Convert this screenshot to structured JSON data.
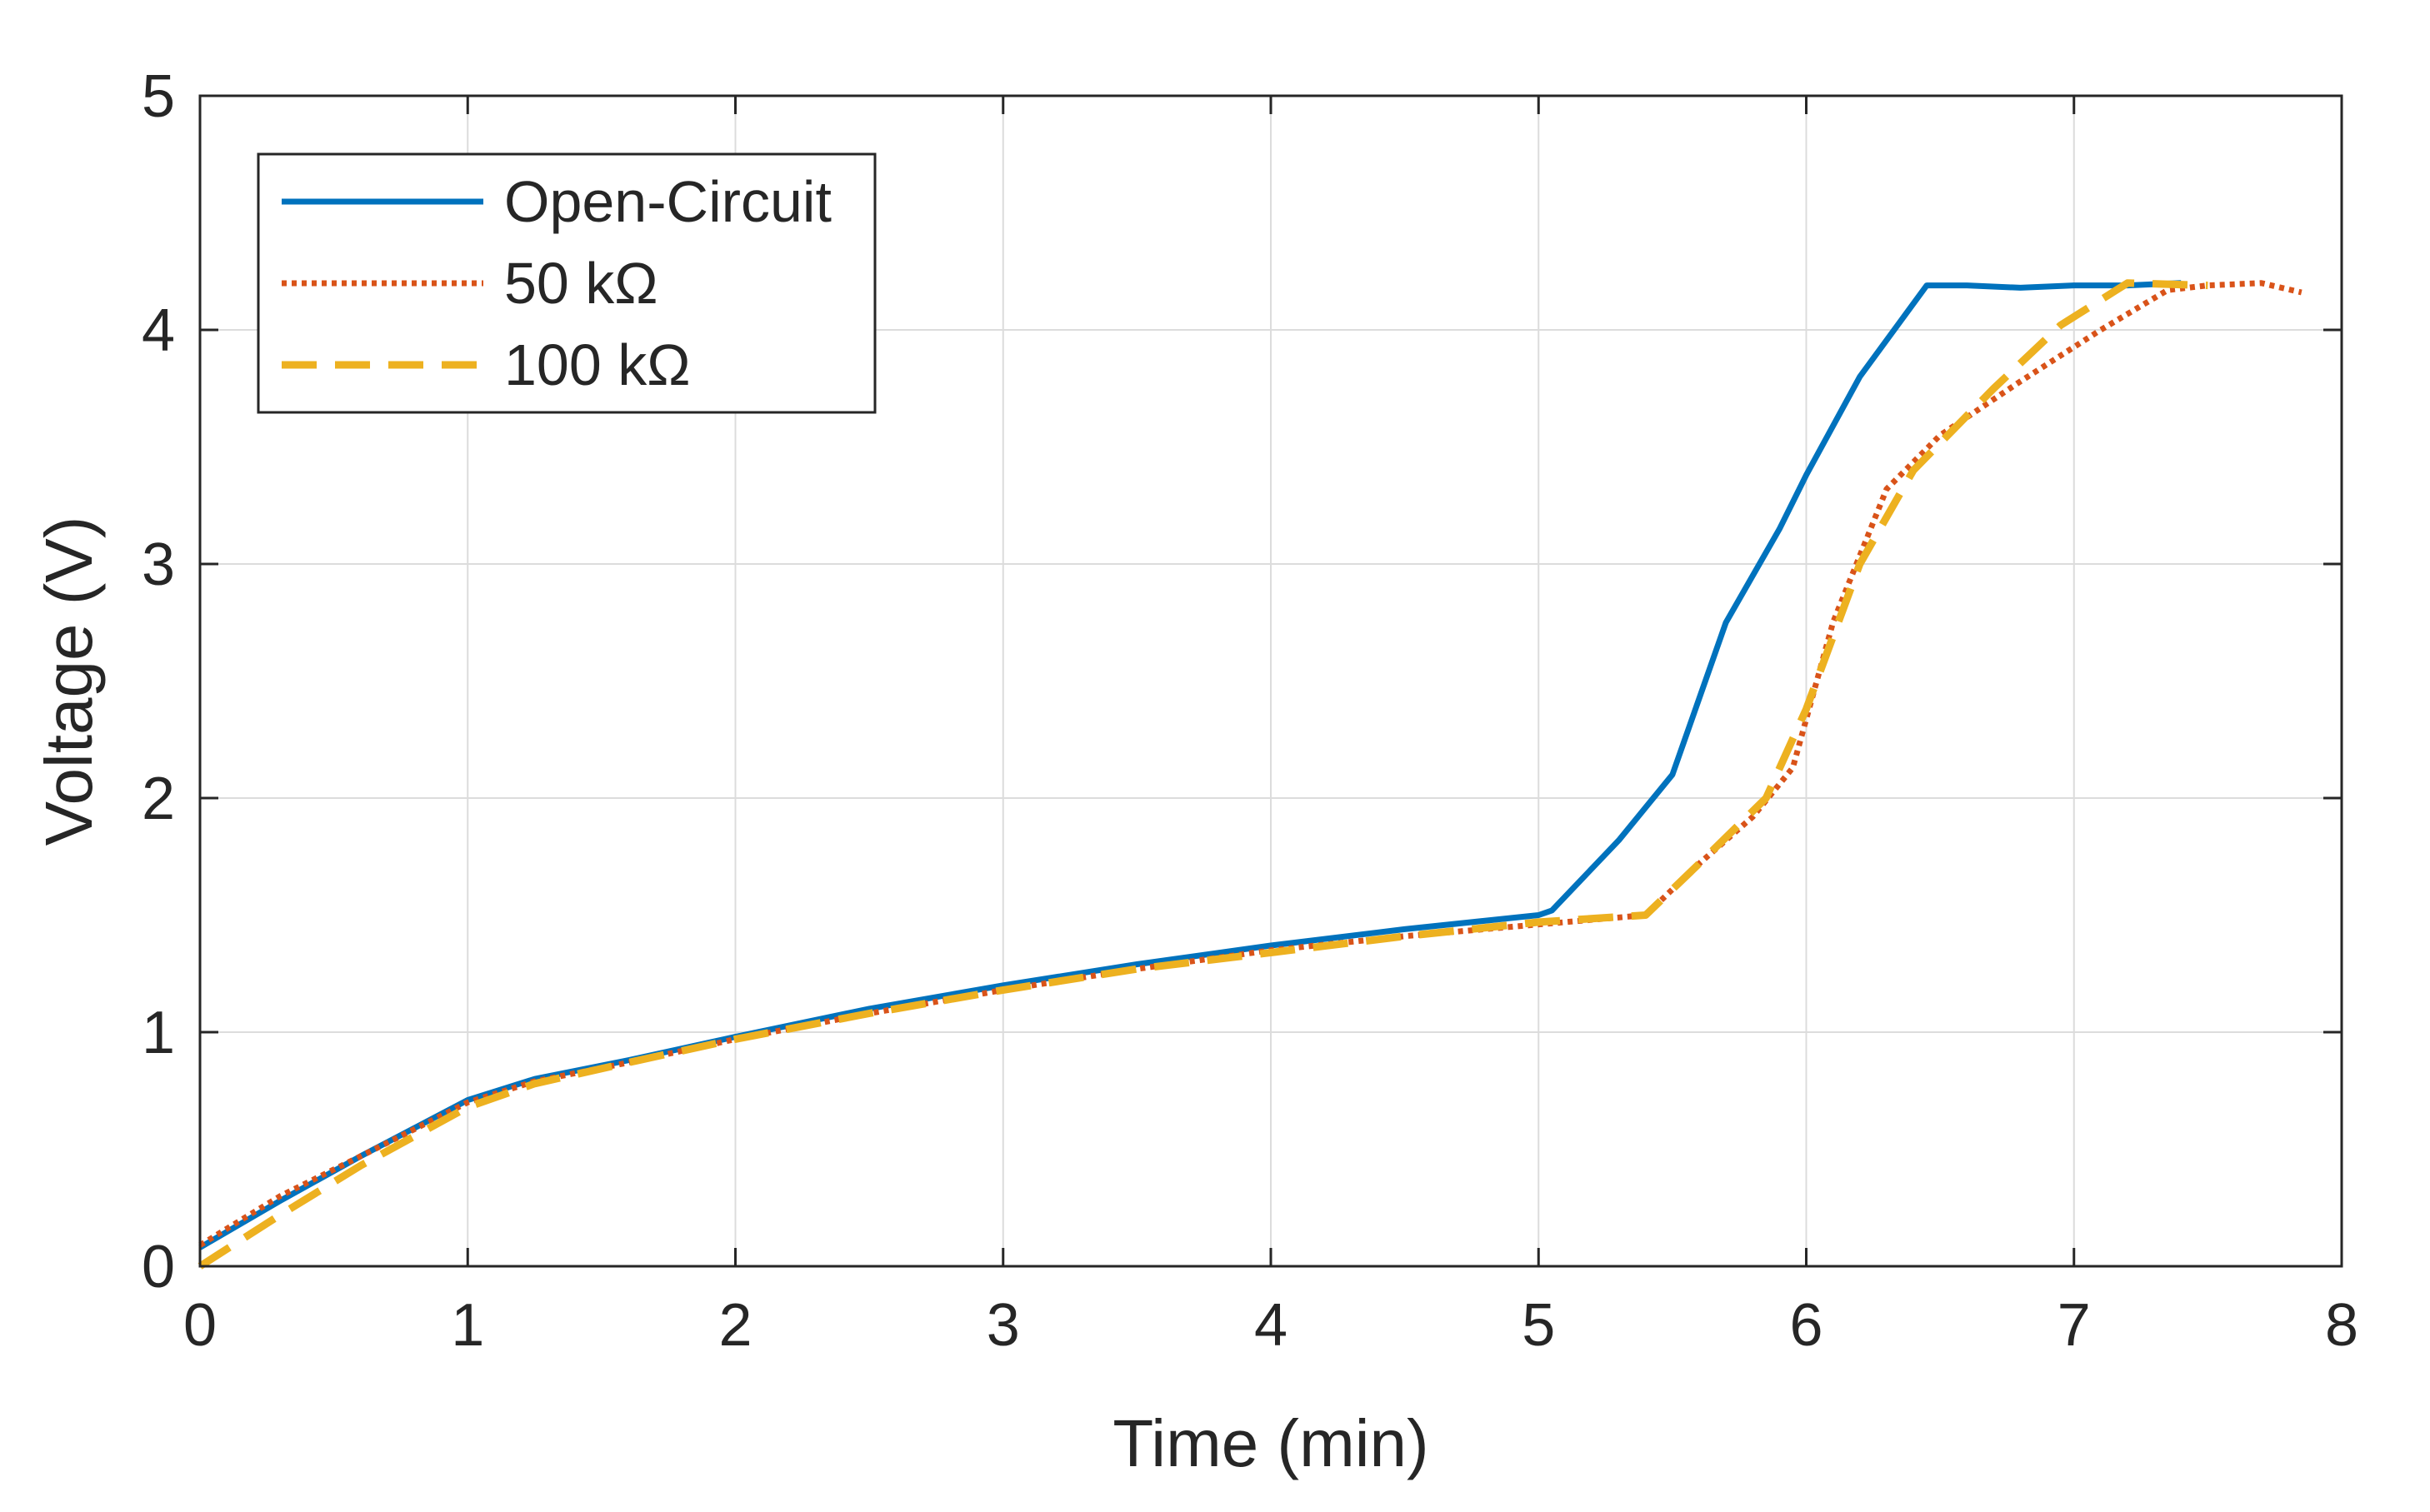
{
  "chart_data": {
    "type": "line",
    "title": "",
    "xlabel": "Time (min)",
    "ylabel": "Voltage (V)",
    "xlim": [
      0,
      8
    ],
    "ylim": [
      0,
      5
    ],
    "xticks": [
      "0",
      "1",
      "2",
      "3",
      "4",
      "5",
      "6",
      "7",
      "8"
    ],
    "yticks": [
      "0",
      "1",
      "2",
      "3",
      "4",
      "5"
    ],
    "grid": true,
    "legend_position": "top-left",
    "series": [
      {
        "name": "Open-Circuit",
        "color": "#0072BD",
        "style": "solid",
        "x": [
          0,
          0.3,
          0.6,
          1.0,
          1.25,
          1.6,
          2.0,
          2.5,
          3.0,
          3.5,
          4.0,
          4.5,
          5.0,
          5.05,
          5.3,
          5.5,
          5.7,
          5.9,
          6.0,
          6.2,
          6.45,
          6.6,
          6.8,
          7.0,
          7.2,
          7.4
        ],
        "y": [
          0.08,
          0.28,
          0.47,
          0.71,
          0.8,
          0.88,
          0.98,
          1.1,
          1.2,
          1.29,
          1.37,
          1.44,
          1.5,
          1.52,
          1.82,
          2.1,
          2.75,
          3.15,
          3.38,
          3.8,
          4.19,
          4.19,
          4.18,
          4.19,
          4.19,
          4.2
        ]
      },
      {
        "name": "50 kΩ",
        "color": "#D95319",
        "style": "dotted",
        "x": [
          0,
          0.3,
          0.6,
          1.0,
          1.25,
          1.6,
          2.0,
          2.5,
          3.0,
          3.5,
          4.0,
          4.5,
          5.0,
          5.4,
          5.6,
          5.8,
          5.95,
          6.1,
          6.3,
          6.5,
          6.8,
          7.1,
          7.35,
          7.5,
          7.7,
          7.85
        ],
        "y": [
          0.09,
          0.3,
          0.47,
          0.7,
          0.79,
          0.87,
          0.97,
          1.08,
          1.18,
          1.27,
          1.35,
          1.41,
          1.46,
          1.5,
          1.72,
          1.92,
          2.13,
          2.75,
          3.32,
          3.55,
          3.78,
          4.0,
          4.17,
          4.19,
          4.2,
          4.16
        ]
      },
      {
        "name": "100 kΩ",
        "color": "#EDB120",
        "style": "dashed",
        "x": [
          0,
          0.3,
          0.6,
          1.0,
          1.25,
          1.6,
          2.0,
          2.5,
          3.0,
          3.5,
          4.0,
          4.5,
          5.0,
          5.4,
          5.6,
          5.85,
          6.0,
          6.2,
          6.4,
          6.7,
          6.95,
          7.2,
          7.5
        ],
        "y": [
          0.0,
          0.22,
          0.43,
          0.68,
          0.78,
          0.87,
          0.97,
          1.08,
          1.18,
          1.27,
          1.34,
          1.41,
          1.47,
          1.5,
          1.72,
          2.0,
          2.38,
          3.0,
          3.4,
          3.75,
          4.02,
          4.2,
          4.19
        ]
      }
    ]
  }
}
